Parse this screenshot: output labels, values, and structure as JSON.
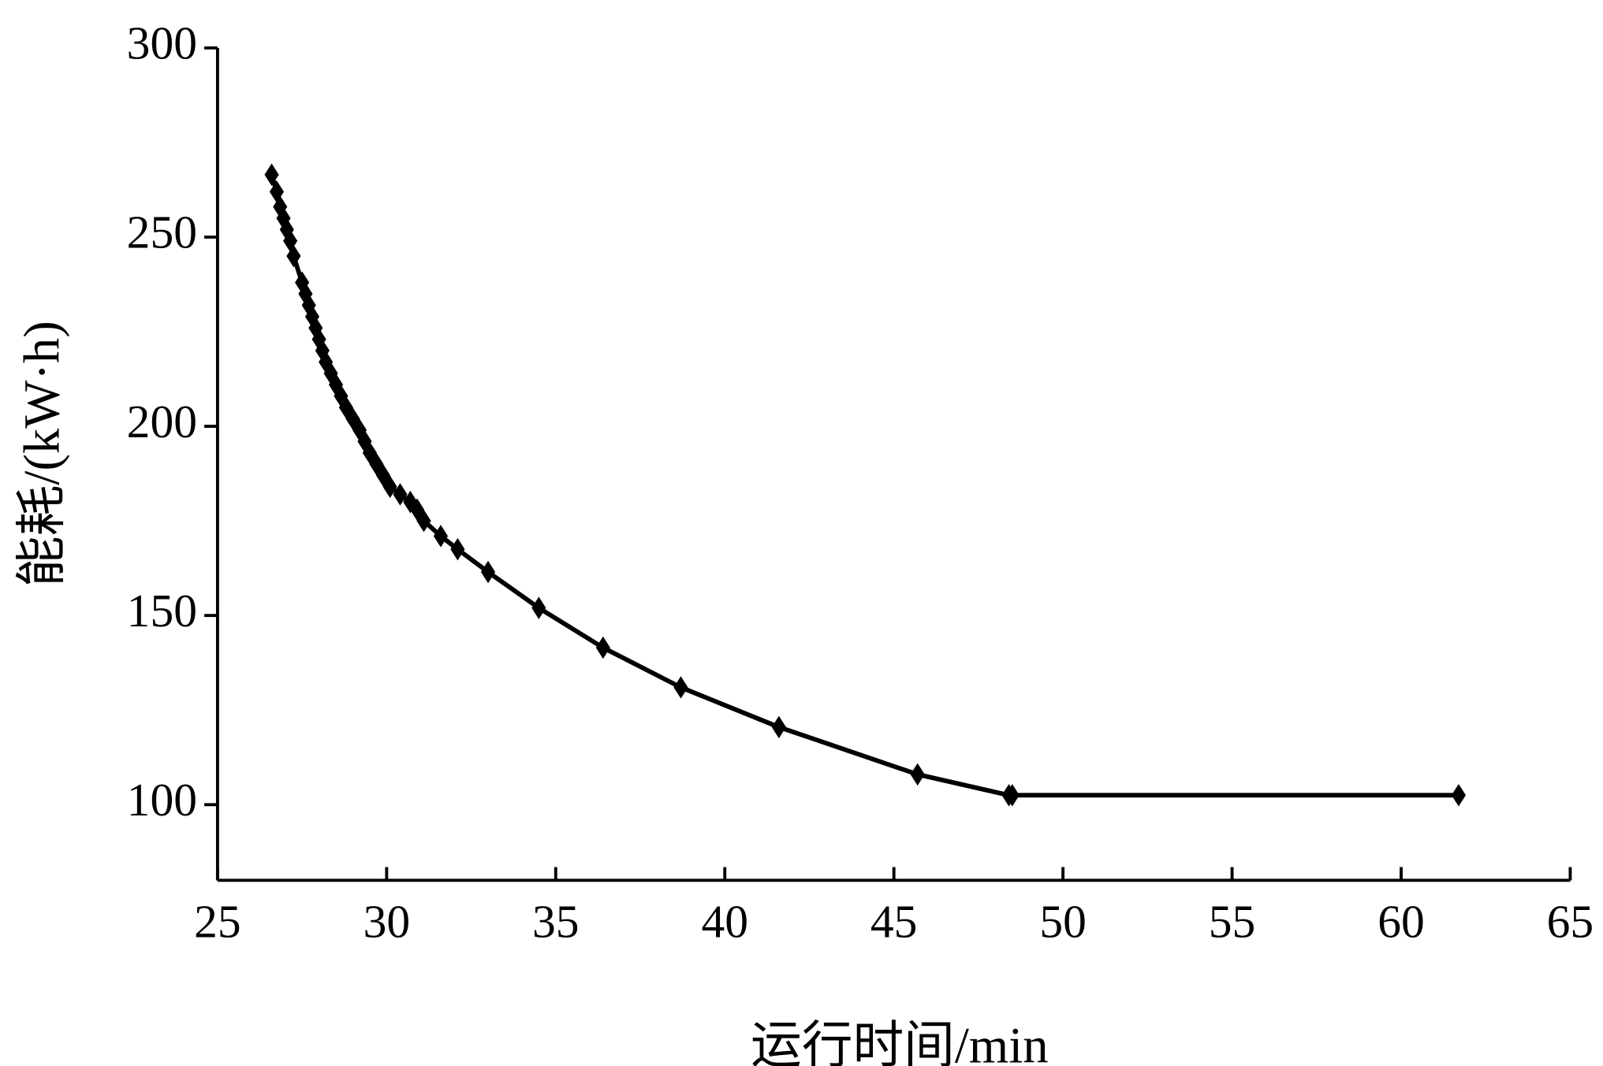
{
  "chart_data": {
    "type": "line",
    "color": "#000000",
    "marker": "diamond",
    "xlabel": "运行时间/min",
    "ylabel": "能耗/(kW·h)",
    "x": [
      26.6,
      26.75,
      26.85,
      26.95,
      27.05,
      27.15,
      27.25,
      27.5,
      27.6,
      27.7,
      27.8,
      27.9,
      28.0,
      28.1,
      28.2,
      28.35,
      28.5,
      28.65,
      28.8,
      29.0,
      29.2,
      29.35,
      29.5,
      29.7,
      29.9,
      30.1,
      30.4,
      30.7,
      30.9,
      31.1,
      31.6,
      32.1,
      33.0,
      34.5,
      36.4,
      38.7,
      41.6,
      45.7,
      48.4,
      48.5,
      61.7
    ],
    "values": [
      266.5,
      262,
      258,
      255,
      252,
      249,
      245,
      238,
      235,
      232,
      229,
      226,
      223,
      220,
      217,
      214,
      211,
      208,
      205,
      202,
      199,
      196,
      193,
      190,
      187,
      184,
      182,
      180,
      178,
      175,
      171,
      167.5,
      161.5,
      152,
      141.5,
      131,
      120.5,
      108,
      102.5,
      102.5,
      102.5
    ],
    "xlim": [
      25,
      65
    ],
    "xticks": [
      25,
      30,
      35,
      40,
      45,
      50,
      55,
      60,
      65
    ],
    "ylim": [
      80,
      300
    ],
    "yticks": [
      100,
      150,
      200,
      250,
      300
    ]
  }
}
